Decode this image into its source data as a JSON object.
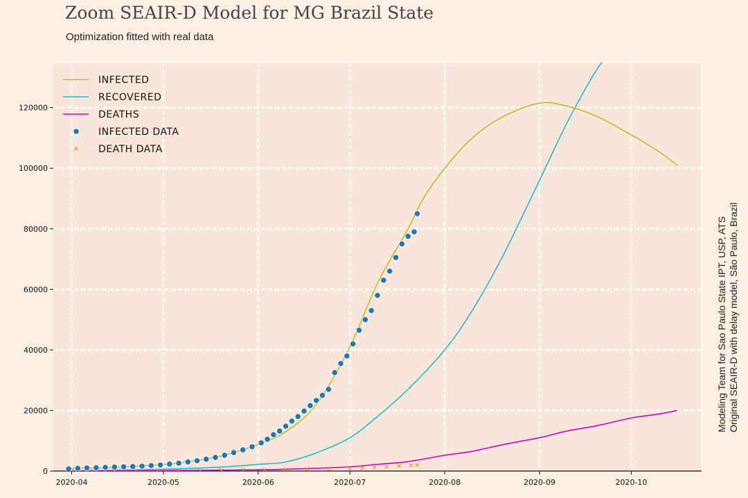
{
  "header": {
    "title": "Zoom SEAIR-D Model for MG Brazil State",
    "subtitle": "Optimization fitted with real data"
  },
  "side_note": {
    "line1": "Modeling Team for Sao Paulo State IPT, USP, ATS",
    "line2": "Original SEAIR-D with delay model, São Paulo, Brazil"
  },
  "chart_data": {
    "type": "line",
    "title": "Zoom SEAIR-D Model for MG Brazil State",
    "subtitle": "Optimization fitted with real data",
    "xlabel": "",
    "ylabel": "",
    "x_range": [
      "2020-03-26",
      "2020-10-24"
    ],
    "ylim": [
      0,
      135000
    ],
    "x_ticks": [
      "2020-04",
      "2020-05",
      "2020-06",
      "2020-07",
      "2020-08",
      "2020-09",
      "2020-10"
    ],
    "y_ticks": [
      0,
      20000,
      40000,
      60000,
      80000,
      100000,
      120000
    ],
    "grid": true,
    "legend_position": "top-left",
    "colors": {
      "background": "#fcefe4",
      "plot_area": "#f9e6da",
      "infected": "#bcbd22",
      "recovered": "#17becf",
      "deaths": "#c800c8",
      "infected_data": "#1f77b4",
      "death_data": "#ff7f0e"
    },
    "series": [
      {
        "name": "INFECTED",
        "style": "line",
        "x": [
          "2020-03-30",
          "2020-04-15",
          "2020-05-01",
          "2020-05-10",
          "2020-05-20",
          "2020-06-01",
          "2020-06-10",
          "2020-06-20",
          "2020-07-01",
          "2020-07-10",
          "2020-07-20",
          "2020-07-25",
          "2020-08-01",
          "2020-08-10",
          "2020-08-20",
          "2020-09-01",
          "2020-09-10",
          "2020-09-20",
          "2020-10-01",
          "2020-10-10",
          "2020-10-16"
        ],
        "y": [
          800,
          1200,
          2200,
          3200,
          5000,
          8800,
          13000,
          22000,
          41000,
          62000,
          80000,
          90000,
          100000,
          110000,
          117000,
          121500,
          120500,
          117000,
          111000,
          105500,
          101000
        ]
      },
      {
        "name": "RECOVERED",
        "style": "line",
        "x": [
          "2020-03-30",
          "2020-05-01",
          "2020-05-20",
          "2020-06-01",
          "2020-06-10",
          "2020-06-20",
          "2020-07-01",
          "2020-07-10",
          "2020-07-20",
          "2020-08-01",
          "2020-08-10",
          "2020-08-20",
          "2020-09-01",
          "2020-09-10",
          "2020-09-20",
          "2020-09-26"
        ],
        "y": [
          0,
          600,
          1300,
          2200,
          3000,
          6000,
          11000,
          18000,
          27000,
          40000,
          53000,
          71000,
          96000,
          115000,
          133000,
          140000
        ]
      },
      {
        "name": "DEATHS",
        "style": "line",
        "x": [
          "2020-03-30",
          "2020-05-01",
          "2020-06-01",
          "2020-06-20",
          "2020-07-01",
          "2020-07-10",
          "2020-07-20",
          "2020-08-01",
          "2020-08-10",
          "2020-08-20",
          "2020-09-01",
          "2020-09-10",
          "2020-09-20",
          "2020-10-01",
          "2020-10-10",
          "2020-10-16"
        ],
        "y": [
          0,
          150,
          400,
          900,
          1400,
          2200,
          3100,
          5200,
          6500,
          8700,
          11000,
          13200,
          15000,
          17500,
          18800,
          20000
        ]
      },
      {
        "name": "INFECTED DATA",
        "style": "scatter",
        "x": [
          "2020-03-31",
          "2020-04-03",
          "2020-04-06",
          "2020-04-09",
          "2020-04-12",
          "2020-04-15",
          "2020-04-18",
          "2020-04-21",
          "2020-04-24",
          "2020-04-27",
          "2020-04-30",
          "2020-05-03",
          "2020-05-06",
          "2020-05-09",
          "2020-05-12",
          "2020-05-15",
          "2020-05-18",
          "2020-05-21",
          "2020-05-24",
          "2020-05-27",
          "2020-05-30",
          "2020-06-02",
          "2020-06-04",
          "2020-06-06",
          "2020-06-08",
          "2020-06-10",
          "2020-06-12",
          "2020-06-14",
          "2020-06-16",
          "2020-06-18",
          "2020-06-20",
          "2020-06-22",
          "2020-06-24",
          "2020-06-26",
          "2020-06-28",
          "2020-06-30",
          "2020-07-02",
          "2020-07-04",
          "2020-07-06",
          "2020-07-08",
          "2020-07-10",
          "2020-07-12",
          "2020-07-14",
          "2020-07-16",
          "2020-07-18",
          "2020-07-20",
          "2020-07-22",
          "2020-07-23"
        ],
        "y": [
          700,
          900,
          1000,
          1100,
          1200,
          1300,
          1400,
          1500,
          1600,
          1800,
          2000,
          2300,
          2600,
          3000,
          3400,
          3900,
          4500,
          5200,
          6100,
          7000,
          8000,
          9300,
          10500,
          12000,
          13200,
          14800,
          16500,
          18000,
          19800,
          21600,
          23300,
          25000,
          27000,
          32500,
          35500,
          38000,
          42000,
          46500,
          50000,
          53000,
          58000,
          63000,
          66000,
          70500,
          75000,
          77500,
          79000,
          85000
        ]
      },
      {
        "name": "DEATH DATA",
        "style": "scatter-x",
        "x": [
          "2020-04-01",
          "2020-04-08",
          "2020-04-15",
          "2020-04-22",
          "2020-04-29",
          "2020-05-06",
          "2020-05-13",
          "2020-05-20",
          "2020-05-27",
          "2020-06-03",
          "2020-06-10",
          "2020-06-17",
          "2020-06-24",
          "2020-07-01",
          "2020-07-05",
          "2020-07-09",
          "2020-07-13",
          "2020-07-17",
          "2020-07-21",
          "2020-07-23"
        ],
        "y": [
          20,
          40,
          60,
          80,
          110,
          150,
          200,
          260,
          330,
          420,
          520,
          640,
          780,
          950,
          1100,
          1300,
          1500,
          1700,
          1900,
          2050
        ]
      }
    ]
  }
}
